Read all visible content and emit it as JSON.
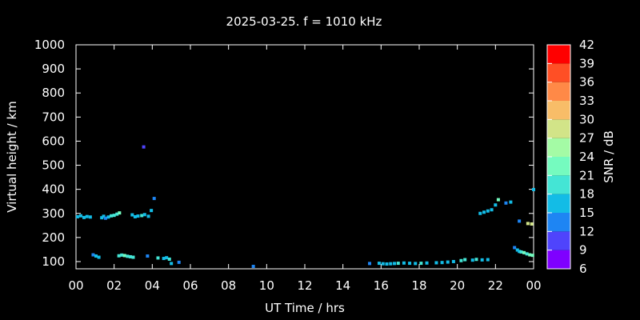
{
  "chart_data": {
    "type": "scatter",
    "title": "2025-03-25. f = 1010 kHz",
    "xlabel": "UT Time / hrs",
    "ylabel": "Virtual height / km",
    "xlim": [
      0,
      24
    ],
    "ylim": [
      70,
      1000
    ],
    "x_ticks": [
      "00",
      "02",
      "04",
      "06",
      "08",
      "10",
      "12",
      "14",
      "16",
      "18",
      "20",
      "22",
      "00"
    ],
    "y_ticks": [
      100,
      200,
      300,
      400,
      500,
      600,
      700,
      800,
      900,
      1000
    ],
    "colorbar": {
      "label": "SNR / dB",
      "range": [
        6,
        42
      ],
      "ticks": [
        6,
        9,
        12,
        15,
        18,
        21,
        24,
        27,
        30,
        33,
        36,
        39,
        42
      ],
      "colors": [
        "#7f00ff",
        "#4f44fc",
        "#1e85f3",
        "#13bce6",
        "#44e5d5",
        "#75fbbf",
        "#a4fba5",
        "#d2e488",
        "#f8bd68",
        "#ff8947",
        "#ff4f25",
        "#ff0000"
      ]
    },
    "series": [
      {
        "points": [
          [
            0.08,
            286,
            16
          ],
          [
            0.25,
            290,
            17
          ],
          [
            0.42,
            283,
            15
          ],
          [
            0.58,
            287,
            16
          ],
          [
            0.75,
            285,
            17
          ],
          [
            1.35,
            282,
            15
          ],
          [
            1.45,
            288,
            16
          ],
          [
            1.55,
            280,
            14
          ],
          [
            1.7,
            285,
            17
          ],
          [
            1.85,
            290,
            18
          ],
          [
            2.0,
            292,
            19
          ],
          [
            2.15,
            297,
            20
          ],
          [
            2.28,
            302,
            21
          ],
          [
            2.95,
            294,
            16
          ],
          [
            3.1,
            286,
            17
          ],
          [
            3.25,
            289,
            16
          ],
          [
            3.45,
            291,
            18
          ],
          [
            3.6,
            295,
            17
          ],
          [
            3.8,
            288,
            16
          ],
          [
            3.95,
            312,
            15
          ],
          [
            4.1,
            362,
            12
          ],
          [
            3.55,
            576,
            11
          ],
          [
            3.75,
            123,
            12
          ],
          [
            0.9,
            128,
            14
          ],
          [
            1.05,
            123,
            16
          ],
          [
            1.2,
            118,
            17
          ],
          [
            2.25,
            124,
            20
          ],
          [
            2.4,
            127,
            19
          ],
          [
            2.55,
            125,
            21
          ],
          [
            2.7,
            122,
            20
          ],
          [
            2.85,
            120,
            19
          ],
          [
            3.0,
            118,
            20
          ],
          [
            4.3,
            115,
            18
          ],
          [
            4.6,
            113,
            16
          ],
          [
            4.75,
            116,
            17
          ],
          [
            4.9,
            110,
            18
          ],
          [
            5.0,
            92,
            15
          ],
          [
            5.4,
            97,
            12
          ],
          [
            9.3,
            80,
            12
          ],
          [
            15.4,
            92,
            13
          ],
          [
            15.9,
            93,
            15
          ],
          [
            16.1,
            91,
            17
          ],
          [
            16.3,
            90,
            16
          ],
          [
            16.5,
            91,
            17
          ],
          [
            16.7,
            92,
            15
          ],
          [
            16.9,
            93,
            18
          ],
          [
            17.2,
            94,
            16
          ],
          [
            17.5,
            93,
            17
          ],
          [
            17.8,
            92,
            16
          ],
          [
            18.1,
            93,
            18
          ],
          [
            18.4,
            94,
            17
          ],
          [
            18.9,
            95,
            16
          ],
          [
            19.2,
            96,
            17
          ],
          [
            19.5,
            98,
            16
          ],
          [
            19.8,
            100,
            15
          ],
          [
            20.2,
            104,
            18
          ],
          [
            20.4,
            108,
            19
          ],
          [
            20.8,
            106,
            17
          ],
          [
            21.0,
            109,
            18
          ],
          [
            21.3,
            107,
            16
          ],
          [
            21.6,
            108,
            17
          ],
          [
            21.2,
            300,
            16
          ],
          [
            21.4,
            305,
            15
          ],
          [
            21.6,
            310,
            17
          ],
          [
            21.8,
            315,
            16
          ],
          [
            22.0,
            335,
            15
          ],
          [
            22.15,
            357,
            22
          ],
          [
            22.55,
            343,
            14
          ],
          [
            22.8,
            347,
            16
          ],
          [
            23.0,
            158,
            12
          ],
          [
            23.15,
            148,
            15
          ],
          [
            23.25,
            142,
            17
          ],
          [
            23.35,
            140,
            19
          ],
          [
            23.5,
            137,
            21
          ],
          [
            23.65,
            132,
            20
          ],
          [
            23.8,
            128,
            22
          ],
          [
            23.95,
            126,
            21
          ],
          [
            23.25,
            268,
            14
          ],
          [
            23.7,
            258,
            27
          ],
          [
            23.9,
            256,
            27
          ],
          [
            24.0,
            399,
            15
          ]
        ]
      }
    ]
  }
}
